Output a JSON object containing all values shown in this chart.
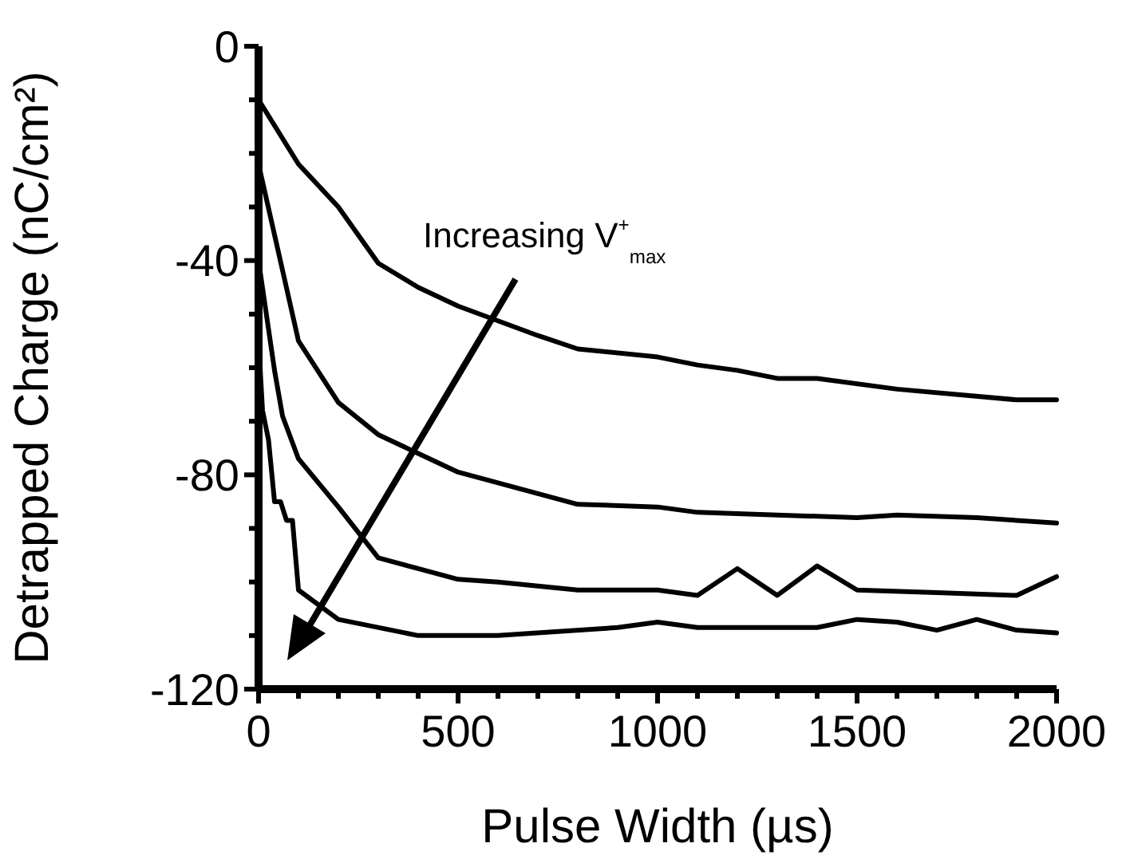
{
  "chart_data": {
    "type": "line",
    "xlabel": "Pulse Width (µs)",
    "ylabel": "Detrapped Charge (nC/cm²)",
    "annotations": [
      "Increasing V$^{+}$$_{max}$"
    ],
    "xlim": [
      0,
      2000
    ],
    "ylim": [
      -120,
      0
    ],
    "xticks": [
      0,
      {
        "value": 100,
        "label": null
      },
      {
        "value": 200,
        "label": null
      },
      {
        "value": 300,
        "label": null
      },
      {
        "value": 400,
        "label": null
      },
      500,
      {
        "value": 600,
        "label": null
      },
      {
        "value": 700,
        "label": null
      },
      {
        "value": 800,
        "label": null
      },
      {
        "value": 900,
        "label": null
      },
      1000,
      {
        "value": 1100,
        "label": null
      },
      {
        "value": 1200,
        "label": null
      },
      {
        "value": 1300,
        "label": null
      },
      {
        "value": 1400,
        "label": null
      },
      1500,
      {
        "value": 1600,
        "label": null
      },
      {
        "value": 1700,
        "label": null
      },
      {
        "value": 1800,
        "label": null
      },
      {
        "value": 1900,
        "label": null
      },
      2000
    ],
    "yticks": [
      -120,
      {
        "value": -110,
        "label": null
      },
      {
        "value": -100,
        "label": null
      },
      {
        "value": -90,
        "label": null
      },
      -80,
      {
        "value": -70,
        "label": null
      },
      {
        "value": -60,
        "label": null
      },
      {
        "value": -50,
        "label": null
      },
      -40,
      {
        "value": -30,
        "label": null
      },
      {
        "value": -20,
        "label": null
      },
      {
        "value": -10,
        "label": null
      },
      0
    ],
    "grid": false,
    "marker": "none",
    "line_style": "solid",
    "series": [
      {
        "color": "#000000",
        "x": [
          0,
          100,
          200,
          300,
          400,
          500,
          700,
          800,
          1000,
          1100,
          1200,
          1300,
          1400,
          1600,
          1900,
          2000
        ],
        "values": [
          -10,
          -22,
          -30,
          -40.5,
          -45,
          -48.5,
          -54,
          -56.5,
          -58,
          -59.5,
          -60.5,
          -62,
          -62,
          -64,
          -66,
          -66
        ]
      },
      {
        "color": "#000000",
        "x": [
          0,
          100,
          200,
          300,
          400,
          500,
          600,
          800,
          1000,
          1100,
          1300,
          1500,
          1600,
          1800,
          2000
        ],
        "values": [
          -22,
          -55,
          -66.5,
          -72.5,
          -76,
          -79.5,
          -81.5,
          -85.5,
          -86,
          -87,
          -87.5,
          -88,
          -87.5,
          -88,
          -89
        ]
      },
      {
        "color": "#000000",
        "x": [
          0,
          40,
          60,
          100,
          200,
          300,
          400,
          500,
          600,
          800,
          1000,
          1100,
          1200,
          1300,
          1400,
          1500,
          1700,
          1900,
          2000
        ],
        "values": [
          -40,
          -60.5,
          -69,
          -77,
          -86,
          -95.5,
          -97.5,
          -99.5,
          -100,
          -101.5,
          -101.5,
          -102.5,
          -97.5,
          -102.5,
          -97,
          -101.5,
          -102,
          -102.5,
          -99
        ]
      },
      {
        "color": "#000000",
        "x": [
          0,
          10,
          25,
          40,
          55,
          70,
          85,
          100,
          200,
          400,
          600,
          900,
          1000,
          1100,
          1400,
          1500,
          1600,
          1700,
          1800,
          1900,
          2000
        ],
        "values": [
          -55,
          -68,
          -73.5,
          -85,
          -85,
          -88.5,
          -88.5,
          -101.5,
          -107,
          -110,
          -110,
          -108.5,
          -107.5,
          -108.5,
          -108.5,
          -107,
          -107.5,
          -109,
          -107,
          -109,
          -109.5
        ]
      }
    ]
  }
}
